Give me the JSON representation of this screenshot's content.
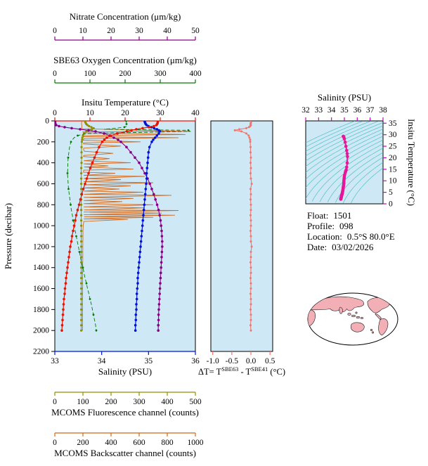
{
  "colors": {
    "plot_bg": "#cfe8f5",
    "delta_t": "#f4736b",
    "ts_axis": "#cc00cc",
    "ts_dots": "#e81499",
    "contour": "#4cc3c3",
    "map_land": "#f2b0b6",
    "text": "#000000"
  },
  "info": [
    {
      "label": "Float:",
      "value": "1501"
    },
    {
      "label": "Profile:",
      "value": "098"
    },
    {
      "label": "Location:",
      "value": "0.5°S 80.0°E"
    },
    {
      "label": "Date:",
      "value": "03/02/2026"
    }
  ],
  "chart_data": [
    {
      "id": "main_profile_plot",
      "type": "line",
      "ylabel": "Pressure (decibar)",
      "ylim": [
        0,
        2200
      ],
      "y_ticks": [
        0,
        200,
        400,
        600,
        800,
        1000,
        1200,
        1400,
        1600,
        1800,
        2000,
        2200
      ],
      "axes": {
        "nitrate": {
          "label": "Nitrate Concentration (μm/kg)",
          "range": [
            0,
            50
          ],
          "ticks": [
            0,
            10,
            20,
            30,
            40,
            50
          ],
          "color": "#880088"
        },
        "oxygen": {
          "label": "SBE63 Oxygen Concentration (μm/kg)",
          "range": [
            0,
            400
          ],
          "ticks": [
            0,
            100,
            200,
            300,
            400
          ],
          "color": "#007a00"
        },
        "temperature": {
          "label": "Insitu Temperature (°C)",
          "range": [
            0,
            40
          ],
          "ticks": [
            0,
            10,
            20,
            30,
            40
          ],
          "color": "#ee1100"
        },
        "salinity": {
          "label": "Salinity (PSU)",
          "range": [
            33,
            36
          ],
          "ticks": [
            33,
            34,
            35,
            36
          ],
          "color": "#0011dd"
        },
        "fluorescence": {
          "label": "MCOMS Fluorescence channel (counts)",
          "range": [
            0,
            500
          ],
          "ticks": [
            0,
            100,
            200,
            300,
            400,
            500
          ],
          "color": "#8f8f00"
        },
        "backscatter": {
          "label": "MCOMS Backscatter channel (counts)",
          "range": [
            0,
            1000
          ],
          "ticks": [
            0,
            200,
            400,
            600,
            800,
            1000
          ],
          "color": "#d2691e"
        }
      },
      "pressure": [
        0,
        10,
        20,
        30,
        40,
        50,
        60,
        70,
        80,
        90,
        100,
        120,
        140,
        160,
        180,
        200,
        250,
        300,
        350,
        400,
        450,
        500,
        550,
        600,
        650,
        700,
        750,
        800,
        850,
        900,
        950,
        1000,
        1050,
        1100,
        1150,
        1200,
        1250,
        1300,
        1350,
        1400,
        1450,
        1500,
        1550,
        1600,
        1650,
        1700,
        1750,
        1800,
        1850,
        1900,
        1950,
        2000
      ],
      "series": [
        {
          "axis": "backscatter",
          "name": "MCOMS Backscatter channel",
          "width": 0.9,
          "pressure": [
            0,
            25,
            50,
            75,
            100,
            105,
            115,
            130,
            140,
            150,
            160,
            170,
            185,
            200,
            210,
            220,
            240,
            260,
            270,
            290,
            310,
            330,
            340,
            360,
            380,
            400,
            410,
            430,
            440,
            460,
            470,
            490,
            500,
            520,
            530,
            550,
            560,
            580,
            590,
            610,
            620,
            640,
            650,
            670,
            680,
            700,
            710,
            730,
            740,
            760,
            770,
            790,
            800,
            820,
            830,
            850,
            855,
            870,
            880,
            895,
            900,
            915,
            920,
            935,
            940,
            960,
            980,
            1000,
            1050,
            1100,
            1200,
            1300,
            1400,
            1500,
            1600,
            1700,
            1800,
            1900,
            2000
          ],
          "values": [
            192,
            190,
            193,
            191,
            955,
            200,
            205,
            930,
            210,
            204,
            880,
            208,
            200,
            610,
            205,
            204,
            470,
            206,
            204,
            210,
            415,
            206,
            204,
            390,
            206,
            540,
            206,
            380,
            208,
            560,
            206,
            204,
            430,
            206,
            640,
            206,
            470,
            206,
            700,
            206,
            540,
            206,
            460,
            206,
            630,
            208,
            830,
            206,
            560,
            206,
            480,
            206,
            700,
            206,
            640,
            208,
            880,
            206,
            760,
            206,
            855,
            208,
            700,
            206,
            520,
            206,
            204,
            202,
            200,
            200,
            199,
            199,
            198,
            198,
            198,
            197,
            197,
            197,
            197
          ]
        },
        {
          "axis": "fluorescence",
          "name": "MCOMS Fluorescence channel",
          "marker_every": 1,
          "marker_r": 1.6,
          "width": 1,
          "values": [
            108,
            108,
            110,
            112,
            116,
            122,
            130,
            138,
            132,
            120,
            112,
            104,
            100,
            98,
            97,
            96,
            95,
            95,
            95,
            95,
            94,
            94,
            94,
            94,
            94,
            94,
            94,
            94,
            94,
            94,
            94,
            94,
            94,
            94,
            94,
            94,
            94,
            94,
            94,
            94,
            94,
            94,
            94,
            94,
            94,
            94,
            94,
            94,
            94,
            94,
            94,
            94
          ]
        },
        {
          "axis": "oxygen",
          "name": "SBE63 Oxygen Concentration",
          "dash": "5 3",
          "marker_every": 3,
          "marker_r": 1.4,
          "width": 0.9,
          "values": [
            203,
            203,
            204,
            204,
            205,
            205,
            198,
            175,
            140,
            380,
            385,
            90,
            65,
            55,
            50,
            46,
            42,
            40,
            38,
            37,
            37,
            36,
            37,
            38,
            39,
            41,
            43,
            45,
            47,
            50,
            52,
            55,
            58,
            61,
            64,
            67,
            70,
            73,
            76,
            80,
            83,
            86,
            90,
            93,
            97,
            100,
            104,
            107,
            110,
            113,
            116,
            118
          ]
        },
        {
          "axis": "nitrate",
          "name": "Nitrate Concentration",
          "marker_every": 1,
          "marker_r": 1.8,
          "width": 1.1,
          "values": [
            0.1,
            0.1,
            0.1,
            0.2,
            0.5,
            1.5,
            3.5,
            6.0,
            9.0,
            12.0,
            14.5,
            17.5,
            19.5,
            21.0,
            22.5,
            23.5,
            25.5,
            27.0,
            28.5,
            30.0,
            31.0,
            32.0,
            33.0,
            33.8,
            34.5,
            35.2,
            35.8,
            36.4,
            36.9,
            37.3,
            37.6,
            37.8,
            38.0,
            38.1,
            38.2,
            38.2,
            38.1,
            38.0,
            37.9,
            37.8,
            37.7,
            37.6,
            37.5,
            37.4,
            37.3,
            37.2,
            37.1,
            37.0,
            36.9,
            36.9,
            36.8,
            36.8
          ]
        },
        {
          "axis": "salinity",
          "name": "Salinity",
          "marker_every": 1,
          "marker_r": 1.8,
          "width": 1.2,
          "values": [
            34.92,
            34.92,
            34.93,
            34.94,
            34.96,
            35.0,
            35.06,
            35.12,
            35.18,
            35.22,
            35.24,
            35.22,
            35.18,
            35.14,
            35.1,
            35.07,
            35.02,
            35.0,
            34.99,
            34.98,
            34.97,
            34.96,
            34.96,
            34.95,
            34.94,
            34.93,
            34.92,
            34.91,
            34.9,
            34.89,
            34.88,
            34.87,
            34.86,
            34.85,
            34.84,
            34.83,
            34.82,
            34.81,
            34.8,
            34.79,
            34.78,
            34.77,
            34.77,
            34.76,
            34.75,
            34.75,
            34.74,
            34.74,
            34.73,
            34.73,
            34.72,
            34.72
          ]
        },
        {
          "axis": "temperature",
          "name": "Insitu Temperature",
          "marker_every": 1,
          "marker_r": 1.8,
          "width": 1.2,
          "values": [
            29.3,
            29.3,
            29.25,
            29.1,
            28.9,
            28.2,
            26.8,
            25.0,
            23.2,
            21.8,
            20.5,
            17.8,
            15.9,
            14.8,
            14.1,
            13.5,
            12.6,
            11.9,
            11.3,
            10.7,
            10.1,
            9.6,
            9.1,
            8.6,
            8.1,
            7.7,
            7.3,
            6.9,
            6.5,
            6.1,
            5.8,
            5.5,
            5.2,
            4.9,
            4.7,
            4.4,
            4.2,
            4.0,
            3.8,
            3.6,
            3.4,
            3.2,
            3.1,
            2.9,
            2.8,
            2.6,
            2.5,
            2.4,
            2.3,
            2.2,
            2.1,
            2.0
          ]
        }
      ]
    },
    {
      "id": "delta_t_plot",
      "type": "line",
      "xlabel_parts": [
        "ΔT= T",
        "SBE63",
        " - T",
        "SBE41",
        " (°C)"
      ],
      "xlim": [
        -1.05,
        0.57
      ],
      "x_ticks": [
        "-1.0",
        "-0.5",
        "0.0",
        "0.5"
      ],
      "ylim": [
        0,
        2200
      ],
      "pressure_source": "main_profile_plot.pressure",
      "values": [
        -0.01,
        0.0,
        0.0,
        -0.01,
        0.0,
        -0.02,
        -0.05,
        -0.12,
        -0.3,
        -0.42,
        -0.25,
        -0.12,
        -0.06,
        -0.04,
        -0.02,
        -0.02,
        -0.01,
        -0.01,
        0.0,
        -0.01,
        0.0,
        -0.01,
        0.0,
        0.02,
        -0.01,
        0.0,
        -0.01,
        0.0,
        0.0,
        -0.01,
        0.0,
        0.0,
        -0.01,
        0.0,
        0.0,
        0.02,
        0.0,
        0.0,
        -0.01,
        0.0,
        0.0,
        -0.01,
        0.0,
        0.0,
        -0.01,
        0.0,
        0.0,
        -0.01,
        0.0,
        0.0,
        -0.01,
        0.0
      ]
    },
    {
      "id": "ts_plot",
      "type": "scatter",
      "xlabel": "Salinity (PSU)",
      "xlim": [
        32,
        38
      ],
      "x_ticks": [
        32,
        33,
        34,
        35,
        36,
        37,
        38
      ],
      "ylabel": "Insitu Temperature (°C)",
      "ylim": [
        0,
        36
      ],
      "y_ticks": [
        0,
        5,
        10,
        15,
        20,
        25,
        30,
        35
      ],
      "points_source": "salinity and temperature series of main_profile_plot",
      "sigma_contours": {
        "min": 21,
        "max": 28.5,
        "step": 0.5
      }
    }
  ]
}
